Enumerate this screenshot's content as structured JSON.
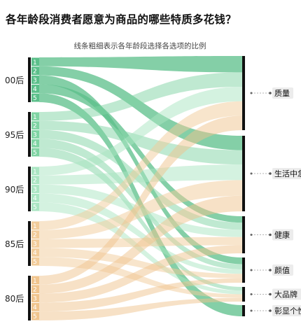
{
  "title": "各年龄段消费者愿意为商品的哪些特质多花钱？",
  "subtitle": "线条粗细表示各年龄段选择各选项的比例",
  "colors": {
    "00后": "#5bbf8a",
    "95后": "#7fd4a3",
    "90后": "#a9e5c2",
    "85后": "#f2cc9a",
    "80后": "#f0c48d"
  },
  "chart_data": {
    "type": "sankey",
    "title": "各年龄段消费者愿意为商品的哪些特质多花钱？",
    "subtitle": "线条粗细表示各年龄段选择各选项的比例",
    "sources": [
      {
        "name": "00后",
        "items": [
          "1",
          "2",
          "3",
          "4",
          "5"
        ]
      },
      {
        "name": "95后",
        "items": [
          "1",
          "2",
          "3",
          "4",
          "5"
        ]
      },
      {
        "name": "90后",
        "items": [
          "1",
          "2",
          "3",
          "4",
          "5"
        ]
      },
      {
        "name": "85后",
        "items": [
          "1",
          "2",
          "3",
          "4",
          "5"
        ]
      },
      {
        "name": "80后",
        "items": [
          "1",
          "2",
          "3",
          "4",
          "5"
        ]
      }
    ],
    "targets": [
      "质量",
      "生活中急需",
      "健康",
      "颜值",
      "大品牌",
      "彰显个性"
    ],
    "flows": [
      {
        "source": "00后",
        "rank": 1,
        "target": "质量",
        "weight": 17
      },
      {
        "source": "00后",
        "rank": 2,
        "target": "生活中急需",
        "weight": 12
      },
      {
        "source": "00后",
        "rank": 3,
        "target": "颜值",
        "weight": 9
      },
      {
        "source": "00后",
        "rank": 4,
        "target": "健康",
        "weight": 7
      },
      {
        "source": "00后",
        "rank": 5,
        "target": "彰显个性",
        "weight": 5
      },
      {
        "source": "95后",
        "rank": 1,
        "target": "质量",
        "weight": 15
      },
      {
        "source": "95后",
        "rank": 2,
        "target": "生活中急需",
        "weight": 12
      },
      {
        "source": "95后",
        "rank": 3,
        "target": "健康",
        "weight": 8
      },
      {
        "source": "95后",
        "rank": 4,
        "target": "颜值",
        "weight": 7
      },
      {
        "source": "95后",
        "rank": 5,
        "target": "大品牌",
        "weight": 5
      },
      {
        "source": "90后",
        "rank": 1,
        "target": "质量",
        "weight": 15
      },
      {
        "source": "90后",
        "rank": 2,
        "target": "生活中急需",
        "weight": 13
      },
      {
        "source": "90后",
        "rank": 3,
        "target": "健康",
        "weight": 8
      },
      {
        "source": "90后",
        "rank": 4,
        "target": "颜值",
        "weight": 6
      },
      {
        "source": "90后",
        "rank": 5,
        "target": "大品牌",
        "weight": 5
      },
      {
        "source": "85后",
        "rank": 1,
        "target": "质量",
        "weight": 15
      },
      {
        "source": "85后",
        "rank": 2,
        "target": "生活中急需",
        "weight": 13
      },
      {
        "source": "85后",
        "rank": 3,
        "target": "健康",
        "weight": 9
      },
      {
        "source": "85后",
        "rank": 4,
        "target": "颜值",
        "weight": 6
      },
      {
        "source": "85后",
        "rank": 5,
        "target": "大品牌",
        "weight": 5
      },
      {
        "source": "80后",
        "rank": 1,
        "target": "质量",
        "weight": 15
      },
      {
        "source": "80后",
        "rank": 2,
        "target": "生活中急需",
        "weight": 13
      },
      {
        "source": "80后",
        "rank": 3,
        "target": "健康",
        "weight": 9
      },
      {
        "source": "80后",
        "rank": 4,
        "target": "颜值",
        "weight": 6
      },
      {
        "source": "80后",
        "rank": 5,
        "target": "大品牌",
        "weight": 5
      }
    ]
  }
}
